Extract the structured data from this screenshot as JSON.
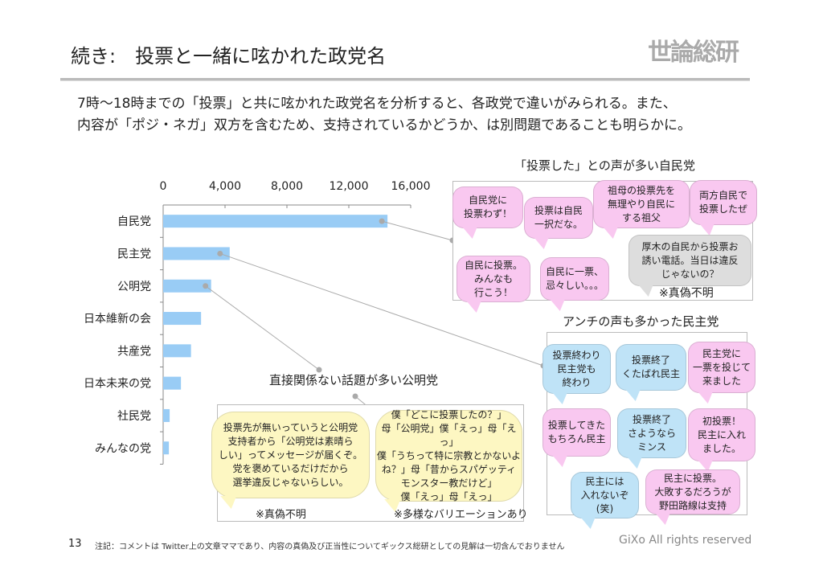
{
  "header": {
    "title": "続き:　投票と一緒に呟かれた政党名",
    "logo": "世論総研"
  },
  "intro": {
    "line1": "7時～18時までの「投票」と共に呟かれた政党名を分析すると、各政党で違いがみられる。また、",
    "line2": "内容が「ポジ・ネガ」双方を含むため、支持されているかどうか、は別問題であることも明らかに。"
  },
  "chart_data": {
    "type": "bar",
    "orientation": "horizontal",
    "categories": [
      "自民党",
      "民主党",
      "公明党",
      "日本維新の会",
      "共産党",
      "日本未来の党",
      "社民党",
      "みんなの党"
    ],
    "values": [
      14500,
      4300,
      3100,
      2450,
      1800,
      1150,
      420,
      370
    ],
    "xlim": [
      0,
      16000
    ],
    "xticks": [
      "0",
      "4,000",
      "8,000",
      "12,000",
      "16,000"
    ],
    "axis_position": "top",
    "color": "#99ccf5"
  },
  "ldp": {
    "title": "「投票した」との声が多い自民党",
    "bubbles": [
      "自民党に\n投票わず！",
      "投票は自民\n一択だな。",
      "祖母の投票先を\n無理やり自民に\nする祖父",
      "両方自民で\n投票したぜ",
      "自民に投票。\nみんなも\n行こう！",
      "自民に一票、\n忌々しい。。。",
      "厚木の自民から投票お\n誘い電話。当日は違反\nじゃないの？"
    ],
    "note": "※真偽不明"
  },
  "dpj": {
    "title": "アンチの声も多かった民主党",
    "bubbles": [
      "投票終わり\n民主党も\n終わり",
      "投票終了\nくたばれ民主",
      "民主党に\n一票を投じて\n来ました",
      "投票してきた\nもちろん民主",
      "投票終了\nさようなら\nミンス",
      "初投票！\n民主に入れ\nました。",
      "民主には\n入れないぞ\n(笑)",
      "民主に投票。\n大敗するだろうが\n野田路線は支持"
    ]
  },
  "komei": {
    "title": "直接関係ない話題が多い公明党",
    "bubbles": [
      "投票先が無いっていうと公明党\n支持者から「公明党は素晴ら\nしい」ってメッセージが届くぞ。\n党を褒めているだけだから\n選挙違反じゃないらしい。",
      "僕「どこに投票したの？」\n母「公明党」僕「えっ」母「えっ」\n僕「うちって特に宗教とかないよ\nね？」母「昔からスパゲッティ\nモンスター教だけど」\n僕「えっ」母「えっ」"
    ],
    "note1": "※真偽不明",
    "note2": "※多様なバリエーションあり"
  },
  "footer": {
    "page": "13",
    "note": "注記：コメントは Twitter上の文章ママであり、内容の真偽及び正当性についてギックス総研としての見解は一切含んでおりません",
    "copyright": "GiXo All rights reserved"
  }
}
